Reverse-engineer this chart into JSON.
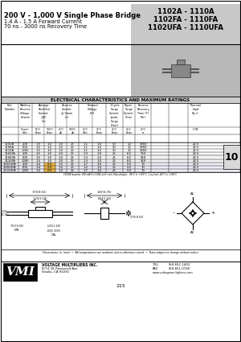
{
  "title_left_line1": "200 V - 1,000 V Single Phase Bridge",
  "title_left_line2": "1.4 A - 1.5 A Forward Current",
  "title_left_line3": "70 ns - 3000 ns Recovery Time",
  "title_right_line1": "1102A - 1110A",
  "title_right_line2": "1102FA - 1110FA",
  "title_right_line3": "1102UFA - 1110UFA",
  "table_title": "ELECTRICAL CHARACTERISTICS AND MAXIMUM RATINGS",
  "rows": [
    [
      "1102A",
      "200",
      "1.5",
      "1.0",
      "1.0",
      "25",
      "1.1",
      "1.0",
      "50",
      "10",
      "3000",
      "22.5"
    ],
    [
      "1106A",
      "600",
      "1.5",
      "1.0",
      "1.0",
      "25",
      "1.1",
      "1.0",
      "50",
      "10",
      "3000",
      "22.5"
    ],
    [
      "1110A",
      "1000",
      "1.5",
      "1.0",
      "1.0",
      "25",
      "1.1",
      "1.0",
      "50",
      "10",
      "3000",
      "22.5"
    ],
    [
      "1102FA",
      "200",
      "1.5",
      "1.0",
      "1.0",
      "25",
      "1.3",
      "1.0",
      "25",
      "6.5",
      "750",
      "22.5"
    ],
    [
      "1106FA",
      "600",
      "1.5",
      "1.0",
      "1.0",
      "25",
      "1.3",
      "1.0",
      "25",
      "6.5",
      "950",
      "22.5"
    ],
    [
      "1110FA",
      "1000",
      "1.5",
      "1.0",
      "1.0",
      "25",
      "1.3",
      "1.0",
      "25",
      "6.0",
      "950",
      "22.5"
    ],
    [
      "1102UFA",
      "200",
      "1.4",
      "0.9",
      "1.0",
      "25",
      "1.7",
      "1.0",
      "25",
      "5.0",
      "70",
      "22.5"
    ],
    [
      "1106UFA",
      "600",
      "1.4",
      "0.9",
      "1.0",
      "25",
      "1.2",
      "1.0",
      "25",
      "5.0",
      "70",
      "22.5"
    ],
    [
      "1110UFA",
      "1000",
      "1.4",
      "0.9",
      "1.0",
      "25",
      "1.7",
      "1.0",
      "25",
      "5.0",
      "70",
      "22.5"
    ]
  ],
  "footnote": "C10/FA Iavgmax: 850 mA/Io=1.00A, bulk order 10pcs/bag/pc: -40°C to +150°C, 1 sq./lead -40°C to +150°C",
  "dim_note": "Dimensions: in. (mm)  •  All temperatures are ambient unless otherwise noted.  •  Data subject to change without notice.",
  "company": "VOLTAGE MULTIPLIERS INC.",
  "address1": "8711 W. Roosevelt Ave.",
  "address2": "Visalia, CA 93291",
  "tel": "TEL    559-651-1402",
  "fax": "FAX   559-651-0740",
  "web": "www.voltagemultipliers.com",
  "page_num": "215",
  "tab_num": "10",
  "bg_color": "#ffffff",
  "gray_box_bg": "#c8c8c8",
  "comp_box_bg": "#b8b8b8",
  "table_title_bg": "#cccccc",
  "highlight_ufa_amber": "#e8a000",
  "row_gray": "#e8e8e8"
}
